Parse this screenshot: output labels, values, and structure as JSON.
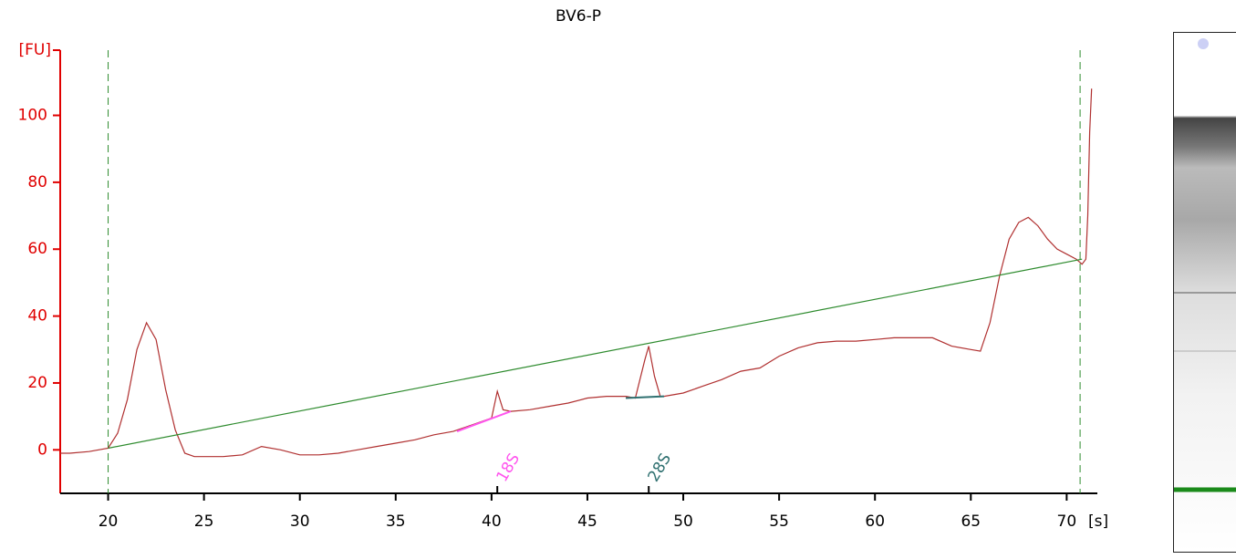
{
  "chart_data": {
    "type": "line",
    "title": "BV6-P",
    "y_label": "[FU]",
    "x_label": "[s]",
    "xlim": [
      17.5,
      71.6
    ],
    "ylim": [
      -13,
      119.5
    ],
    "xticks": [
      20,
      25,
      30,
      35,
      40,
      45,
      50,
      55,
      60,
      65,
      70
    ],
    "yticks": [
      0,
      20,
      40,
      60,
      80,
      100
    ],
    "y_axis_color": "#e00000",
    "markers": [
      20,
      70.7
    ],
    "marker_color": "#2e8b2e",
    "series": [
      {
        "color": "#b03030",
        "x": [
          17.5,
          18,
          19,
          20,
          20.5,
          21,
          21.5,
          22,
          22.5,
          23,
          23.5,
          24,
          24.5,
          25,
          26,
          27,
          28,
          29,
          30,
          31,
          32,
          33,
          34,
          35,
          36,
          37,
          38,
          39,
          40,
          40.3,
          40.6,
          41,
          42,
          43,
          44,
          45,
          46,
          47,
          47.5,
          48,
          48.2,
          48.5,
          48.8,
          49,
          50,
          51,
          52,
          53,
          54,
          55,
          56,
          57,
          58,
          59,
          60,
          61,
          62,
          63,
          64,
          65,
          65.5,
          66,
          66.5,
          67,
          67.5,
          68,
          68.5,
          69,
          69.5,
          70,
          70.5,
          70.8,
          71,
          71.1,
          71.2,
          71.3
        ],
        "y": [
          -1,
          -1,
          -0.5,
          0.5,
          5,
          15,
          30,
          38,
          33,
          18,
          6,
          -1,
          -2,
          -2,
          -2,
          -1.5,
          1,
          0,
          -1.5,
          -1.5,
          -1,
          0,
          1,
          2,
          3,
          4.5,
          5.5,
          7.5,
          9.5,
          17.5,
          12,
          11.5,
          12,
          13,
          14,
          15.5,
          16,
          16,
          15.5,
          27,
          31,
          22,
          16,
          16,
          17,
          19,
          21,
          23.5,
          24.5,
          28,
          30.5,
          32,
          32.5,
          32.5,
          33,
          33.5,
          33.5,
          33.5,
          31,
          30,
          29.5,
          38,
          52,
          63,
          68,
          69.5,
          67,
          63,
          60,
          58.5,
          57,
          55.5,
          57,
          70,
          95,
          108
        ]
      },
      {
        "color": "#2e8b2e",
        "x": [
          20,
          70.8
        ],
        "y": [
          0.5,
          57
        ]
      }
    ],
    "peaks": [
      {
        "label": "18S",
        "x": 40.3,
        "color": "#ff55ee",
        "baseline": {
          "x": [
            38.2,
            41
          ],
          "y": [
            5.5,
            11.5
          ]
        }
      },
      {
        "label": "28S",
        "x": 48.2,
        "color": "#2f7070",
        "baseline": {
          "x": [
            47,
            49
          ],
          "y": [
            15.5,
            16
          ]
        }
      }
    ]
  }
}
